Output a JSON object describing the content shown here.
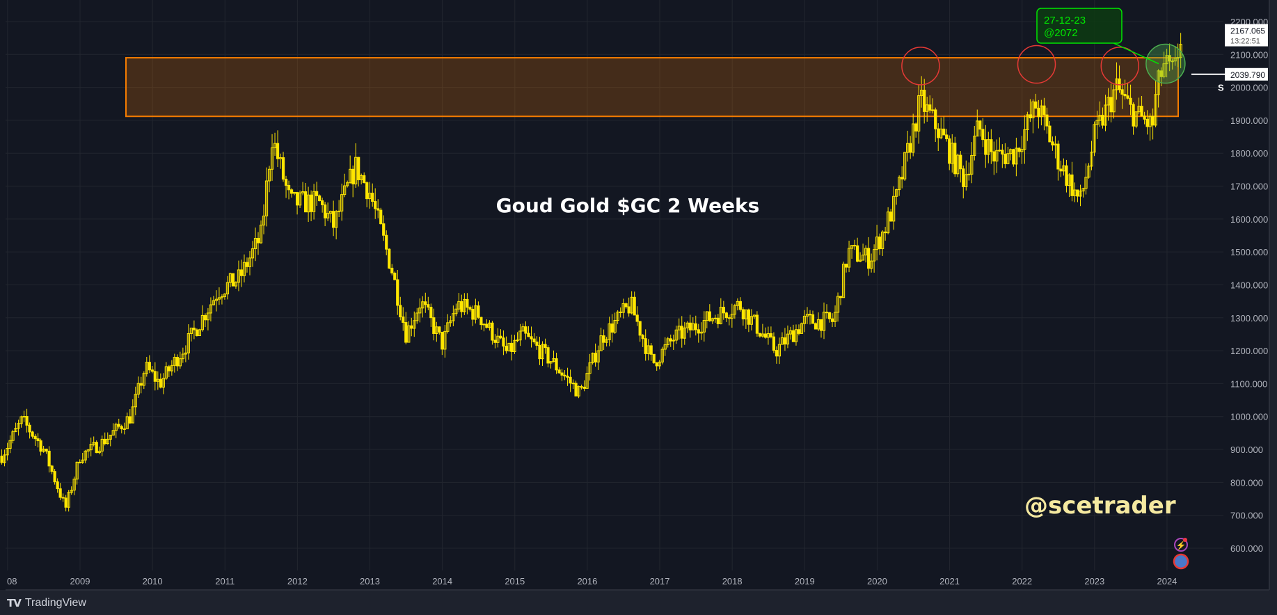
{
  "chart_data": {
    "type": "candlestick",
    "title": "Goud Gold $GC 2 Weeks",
    "watermark": "@scetrader",
    "interval": "2 weeks",
    "x_ticks": [
      "08",
      "2009",
      "2010",
      "2011",
      "2012",
      "2013",
      "2014",
      "2015",
      "2016",
      "2017",
      "2018",
      "2019",
      "2020",
      "2021",
      "2022",
      "2023",
      "2024"
    ],
    "y_ticks": [
      "600.000",
      "700.000",
      "800.000",
      "900.000",
      "1000.000",
      "1100.000",
      "1200.000",
      "1300.000",
      "1400.000",
      "1500.000",
      "1600.000",
      "1700.000",
      "1800.000",
      "1900.000",
      "2000.000",
      "2100.000",
      "2200.000"
    ],
    "ylim": [
      520,
      2260
    ],
    "xlim": [
      2007.92,
      2024.8
    ],
    "price_path": [
      [
        2007.92,
        880
      ],
      [
        2008.2,
        990
      ],
      [
        2008.5,
        900
      ],
      [
        2008.8,
        720
      ],
      [
        2009.0,
        880
      ],
      [
        2009.3,
        920
      ],
      [
        2009.7,
        1000
      ],
      [
        2009.9,
        1150
      ],
      [
        2010.1,
        1100
      ],
      [
        2010.5,
        1230
      ],
      [
        2010.9,
        1380
      ],
      [
        2011.2,
        1420
      ],
      [
        2011.5,
        1550
      ],
      [
        2011.65,
        1850
      ],
      [
        2011.9,
        1650
      ],
      [
        2012.3,
        1650
      ],
      [
        2012.5,
        1580
      ],
      [
        2012.8,
        1760
      ],
      [
        2013.0,
        1680
      ],
      [
        2013.3,
        1450
      ],
      [
        2013.5,
        1250
      ],
      [
        2013.7,
        1350
      ],
      [
        2014.0,
        1220
      ],
      [
        2014.2,
        1340
      ],
      [
        2014.5,
        1310
      ],
      [
        2014.9,
        1190
      ],
      [
        2015.1,
        1250
      ],
      [
        2015.5,
        1170
      ],
      [
        2015.9,
        1070
      ],
      [
        2016.2,
        1240
      ],
      [
        2016.6,
        1340
      ],
      [
        2016.9,
        1160
      ],
      [
        2017.2,
        1240
      ],
      [
        2017.7,
        1300
      ],
      [
        2018.1,
        1340
      ],
      [
        2018.6,
        1200
      ],
      [
        2019.0,
        1290
      ],
      [
        2019.4,
        1290
      ],
      [
        2019.6,
        1500
      ],
      [
        2019.9,
        1480
      ],
      [
        2020.1,
        1570
      ],
      [
        2020.25,
        1650
      ],
      [
        2020.6,
        1960
      ],
      [
        2020.9,
        1850
      ],
      [
        2021.2,
        1720
      ],
      [
        2021.4,
        1880
      ],
      [
        2021.6,
        1790
      ],
      [
        2021.9,
        1800
      ],
      [
        2022.2,
        1950
      ],
      [
        2022.5,
        1780
      ],
      [
        2022.8,
        1650
      ],
      [
        2023.0,
        1850
      ],
      [
        2023.3,
        2000
      ],
      [
        2023.5,
        1930
      ],
      [
        2023.8,
        1880
      ],
      [
        2023.85,
        1980
      ],
      [
        2023.95,
        2070
      ],
      [
        2024.1,
        2040
      ],
      [
        2024.2,
        2167
      ]
    ],
    "resistance_zone": [
      1912,
      2090
    ],
    "touch_points": [
      {
        "x": 2020.6,
        "y": 2065
      },
      {
        "x": 2022.2,
        "y": 2070
      },
      {
        "x": 2023.35,
        "y": 2065
      }
    ],
    "breakout_point": {
      "x": 2023.98,
      "y": 2072
    },
    "callout": {
      "line1": "27-12-23",
      "line2": "@2072"
    },
    "last_price": {
      "value": "2167.065",
      "countdown": "13:22:51",
      "y": 2167.065
    },
    "marker_price": {
      "value": "2039.790",
      "y": 2039.79
    },
    "series_label": "S",
    "colors": {
      "bg": "#131722",
      "candle": "#ffe600",
      "zone": "#f57c00",
      "circle_red": "#e53935",
      "circle_green": "#4caf50",
      "callout": "#00e600",
      "watermark": "#f5e9a0"
    }
  },
  "footer": {
    "brand": "TradingView"
  }
}
